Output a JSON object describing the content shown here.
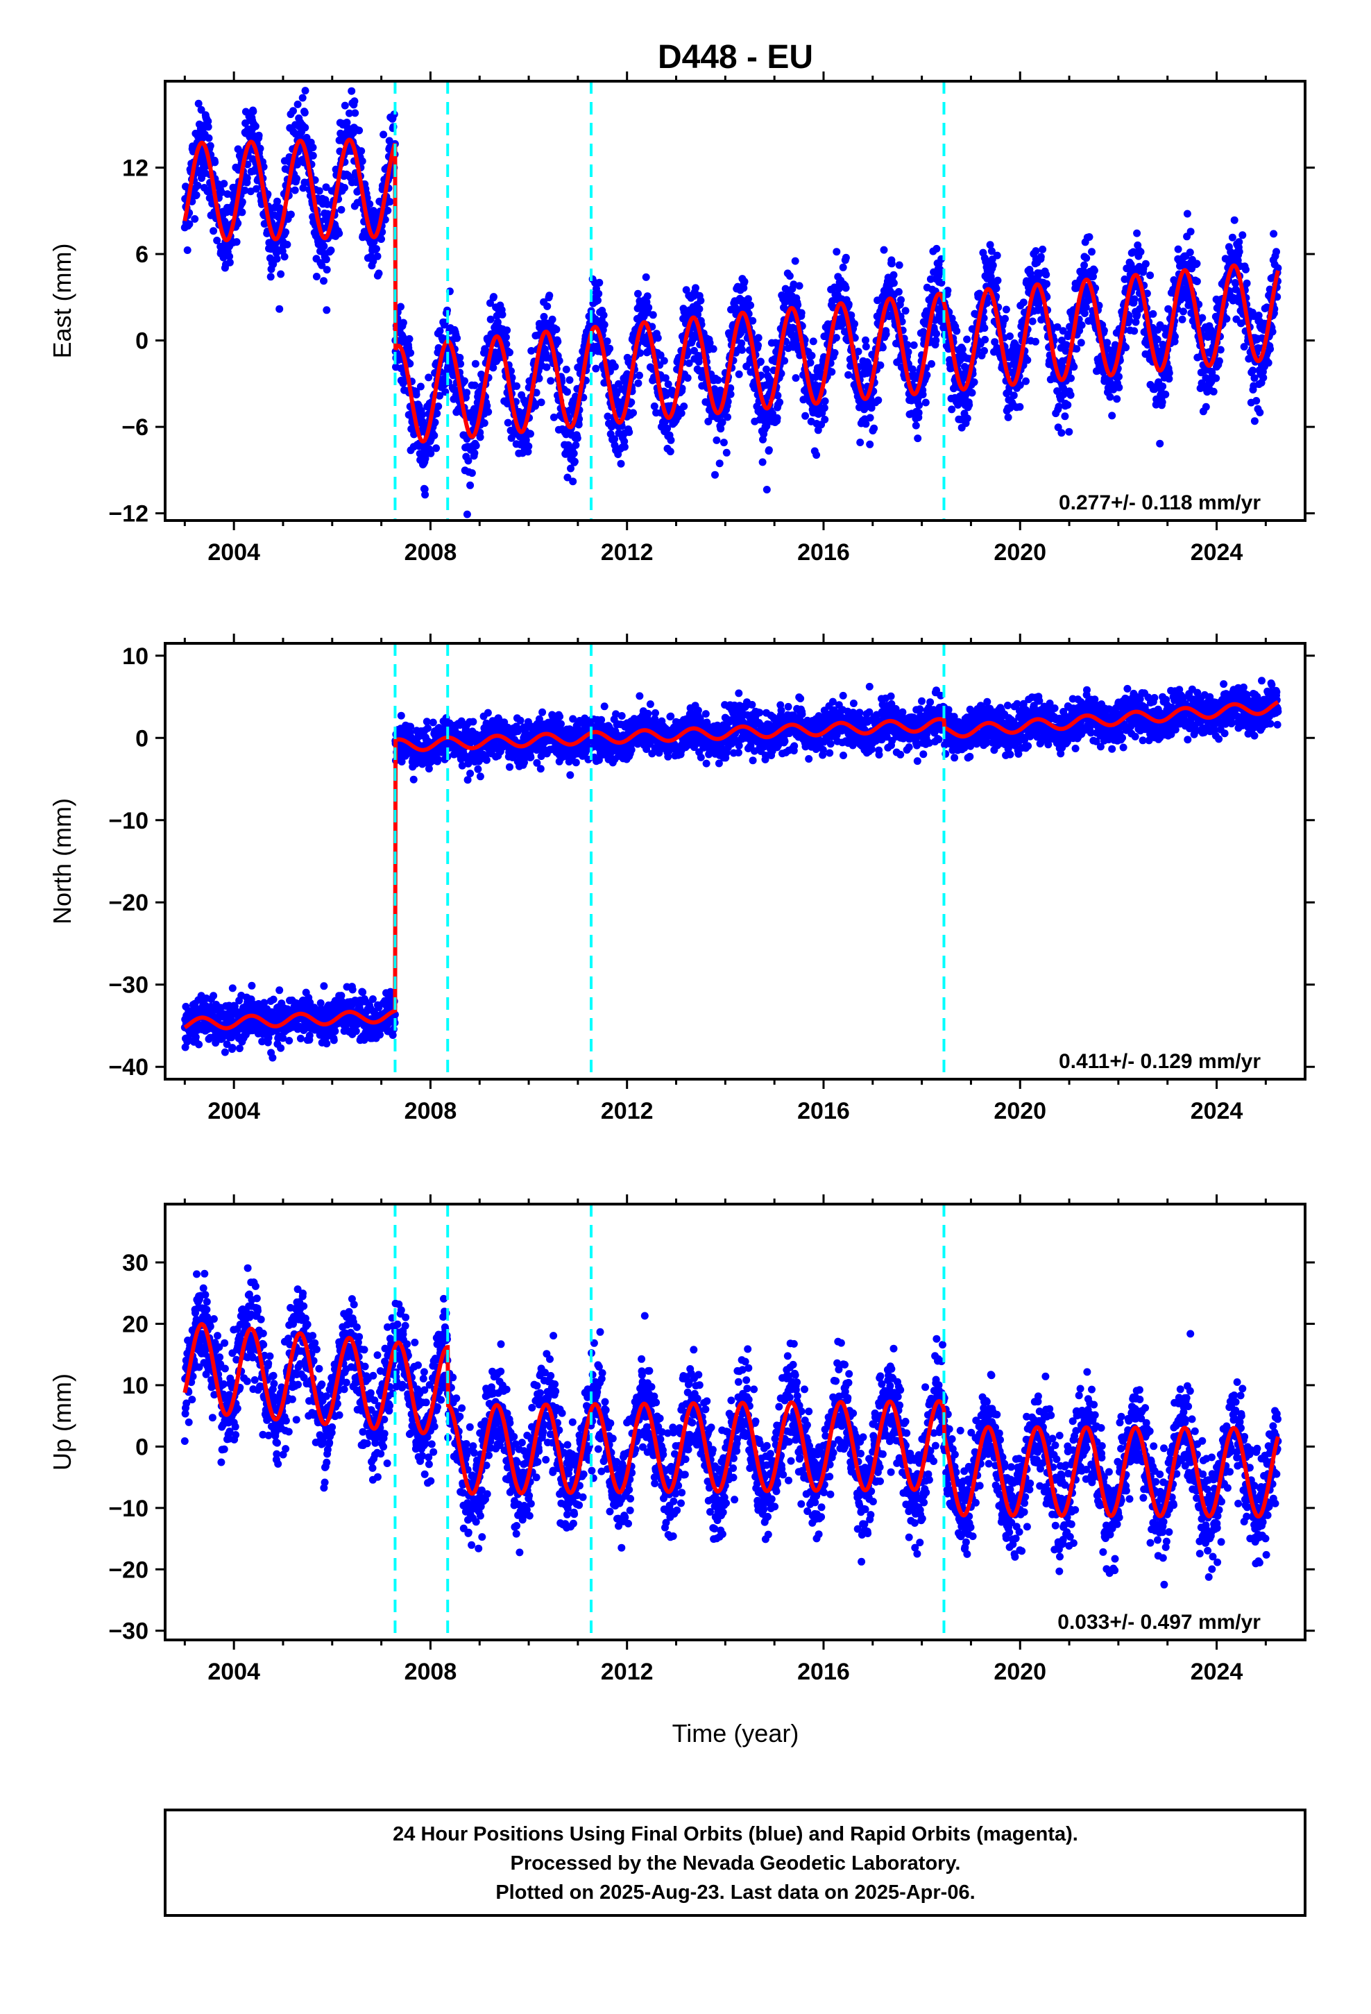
{
  "chart_data": [
    {
      "type": "scatter",
      "panel": "east",
      "title": "D448 - EU",
      "ylabel": "East (mm)",
      "xlabel": "",
      "xlim": [
        2002.6,
        2025.8
      ],
      "ylim": [
        -12.5,
        18
      ],
      "xticks": [
        2004,
        2008,
        2012,
        2016,
        2020,
        2024
      ],
      "yticks": [
        -12,
        -6,
        0,
        6,
        12
      ],
      "rate_text": "0.277+/- 0.118 mm/yr",
      "offsets": [
        2007.28,
        2008.35,
        2011.27,
        2018.45
      ],
      "model": {
        "t0": 2003.0,
        "t1": 2025.25,
        "segments": [
          {
            "from": 2003.0,
            "to": 2007.28,
            "level_start": 10.3,
            "level_end": 10.6
          },
          {
            "from": 2007.28,
            "to": 2025.25,
            "level_start": -3.8,
            "level_end": 2.1
          }
        ],
        "annual_amp": 3.4,
        "scatter_sd": 1.5
      },
      "series": [
        {
          "name": "24 Hour Positions (Final Orbits)",
          "color": "#0000ff"
        },
        {
          "name": "Model fit",
          "color": "#ff0000"
        }
      ]
    },
    {
      "type": "scatter",
      "panel": "north",
      "ylabel": "North (mm)",
      "xlabel": "",
      "xlim": [
        2002.6,
        2025.8
      ],
      "ylim": [
        -41.5,
        11.5
      ],
      "xticks": [
        2004,
        2008,
        2012,
        2016,
        2020,
        2024
      ],
      "yticks": [
        -40,
        -30,
        -20,
        -10,
        0,
        10
      ],
      "rate_text": "0.411+/- 0.129 mm/yr",
      "offsets": [
        2007.28,
        2008.35,
        2011.27,
        2018.45
      ],
      "model": {
        "t0": 2003.0,
        "t1": 2025.25,
        "segments": [
          {
            "from": 2003.0,
            "to": 2007.28,
            "level_start": -34.8,
            "level_end": -33.8
          },
          {
            "from": 2007.28,
            "to": 2018.45,
            "level_start": -0.9,
            "level_end": 1.6
          },
          {
            "from": 2018.45,
            "to": 2025.25,
            "level_start": 0.7,
            "level_end": 3.8
          }
        ],
        "annual_amp": 0.7,
        "scatter_sd": 1.3
      },
      "series": [
        {
          "name": "24 Hour Positions (Final Orbits)",
          "color": "#0000ff"
        },
        {
          "name": "Model fit",
          "color": "#ff0000"
        }
      ]
    },
    {
      "type": "scatter",
      "panel": "up",
      "ylabel": "Up (mm)",
      "xlabel": "Time (year)",
      "xlim": [
        2002.6,
        2025.8
      ],
      "ylim": [
        -31.5,
        39.5
      ],
      "xticks": [
        2004,
        2008,
        2012,
        2016,
        2020,
        2024
      ],
      "yticks": [
        -30,
        -20,
        -10,
        0,
        10,
        20,
        30
      ],
      "rate_text": "0.033+/- 0.497 mm/yr",
      "offsets": [
        2007.28,
        2008.35,
        2011.27,
        2018.45
      ],
      "model": {
        "t0": 2003.0,
        "t1": 2025.25,
        "segments": [
          {
            "from": 2003.0,
            "to": 2008.35,
            "level_start": 13.0,
            "level_end": 9.0
          },
          {
            "from": 2008.35,
            "to": 2018.45,
            "level_start": -0.5,
            "level_end": 0.2
          },
          {
            "from": 2018.45,
            "to": 2025.25,
            "level_start": -4.0,
            "level_end": -4.2
          }
        ],
        "annual_amp": 7.2,
        "scatter_sd": 4.0
      },
      "series": [
        {
          "name": "24 Hour Positions (Final Orbits)",
          "color": "#0000ff"
        },
        {
          "name": "Model fit",
          "color": "#ff0000"
        }
      ]
    }
  ],
  "footer": {
    "line1": "24 Hour Positions Using Final Orbits (blue) and Rapid Orbits (magenta).",
    "line2": "Processed by the Nevada Geodetic Laboratory.",
    "line3": "Plotted on 2025-Aug-23. Last data on 2025-Apr-06."
  },
  "colors": {
    "data": "#0000ff",
    "model": "#ff0000",
    "offset_line": "#00ffff",
    "frame": "#000000"
  }
}
